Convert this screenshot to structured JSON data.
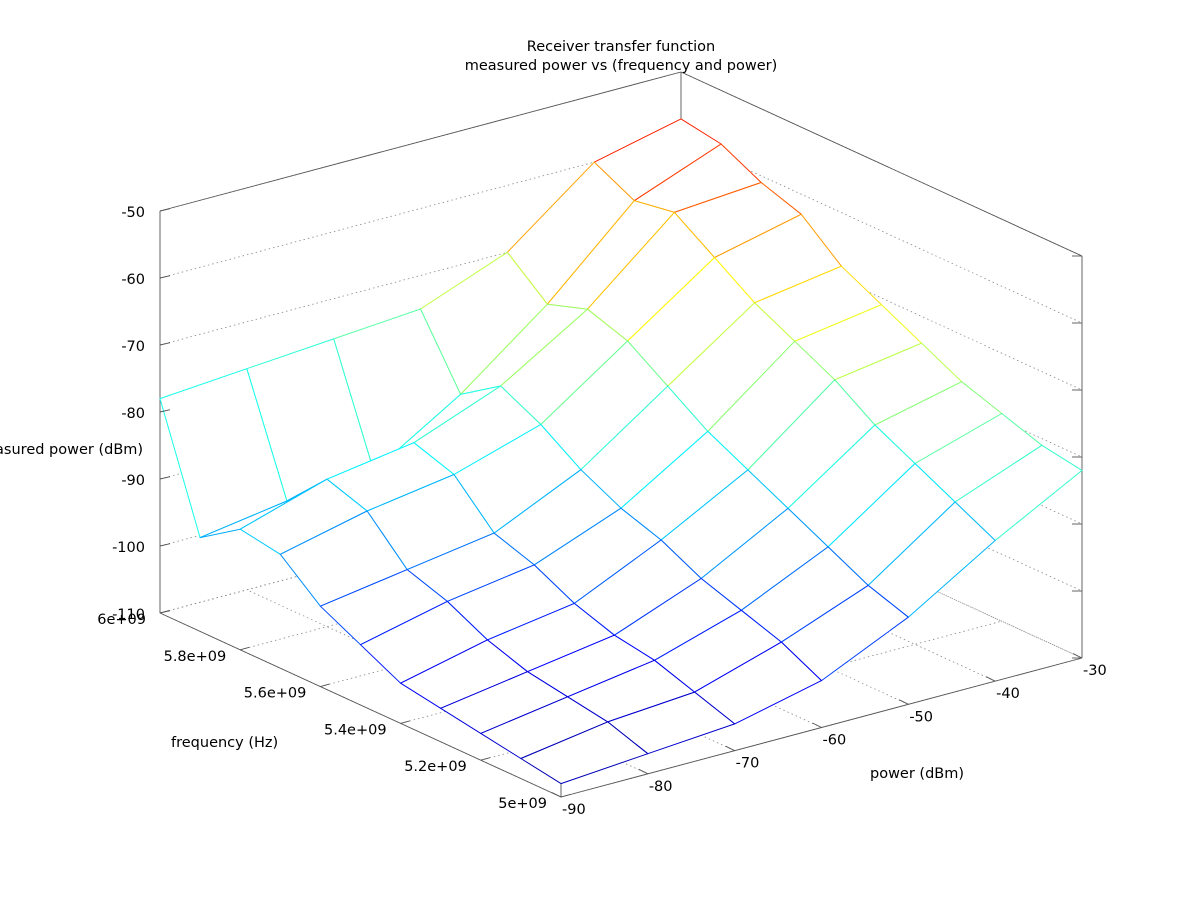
{
  "chart_data": {
    "type": "surface",
    "title": "Receiver transfer function",
    "subtitle": "measured power vs (frequency and power)",
    "xlabel": "power (dBm)",
    "ylabel": "frequency (Hz)",
    "zlabel": "measured power (dBm)",
    "xlim": [
      -90,
      -30
    ],
    "ylim": [
      5000000000,
      6000000000
    ],
    "zlim": [
      -110,
      -50
    ],
    "xticks": [
      "-90",
      "-80",
      "-70",
      "-60",
      "-50",
      "-40",
      "-30"
    ],
    "yticks": [
      "5e+09",
      "5.2e+09",
      "5.4e+09",
      "5.6e+09",
      "5.8e+09",
      "6e+09"
    ],
    "zticks": [
      "-110",
      "-100",
      "-90",
      "-80",
      "-70",
      "-60",
      "-50"
    ],
    "grid": true,
    "colormap": "jet",
    "power_values": [
      -90,
      -80,
      -70,
      -60,
      -50,
      -40,
      -30
    ],
    "frequency_values": [
      6000000000,
      5900000000,
      5800000000,
      5700000000,
      5600000000,
      5500000000,
      5400000000,
      5300000000,
      5200000000,
      5100000000,
      5000000000
    ],
    "measured_power": [
      [
        -78,
        -77,
        -76,
        -75,
        -70,
        -60,
        -57
      ],
      [
        -96,
        -94,
        -93,
        -85,
        -75,
        -63,
        -58
      ],
      [
        -92,
        -88,
        -86,
        -81,
        -73,
        -62,
        -61
      ],
      [
        -93,
        -90,
        -88,
        -84,
        -75,
        -66,
        -63
      ],
      [
        -98,
        -96,
        -94,
        -88,
        -79,
        -70,
        -68
      ],
      [
        -101,
        -98,
        -96,
        -91,
        -83,
        -73,
        -71
      ],
      [
        -104,
        -101,
        -99,
        -93,
        -86,
        -76,
        -74
      ],
      [
        -105,
        -103,
        -101,
        -96,
        -89,
        -80,
        -77
      ],
      [
        -106,
        -104,
        -102,
        -98,
        -92,
        -83,
        -79
      ],
      [
        -107,
        -105,
        -104,
        -100,
        -95,
        -86,
        -81
      ],
      [
        -108,
        -107,
        -106,
        -103,
        -97,
        -89,
        -82
      ]
    ]
  }
}
